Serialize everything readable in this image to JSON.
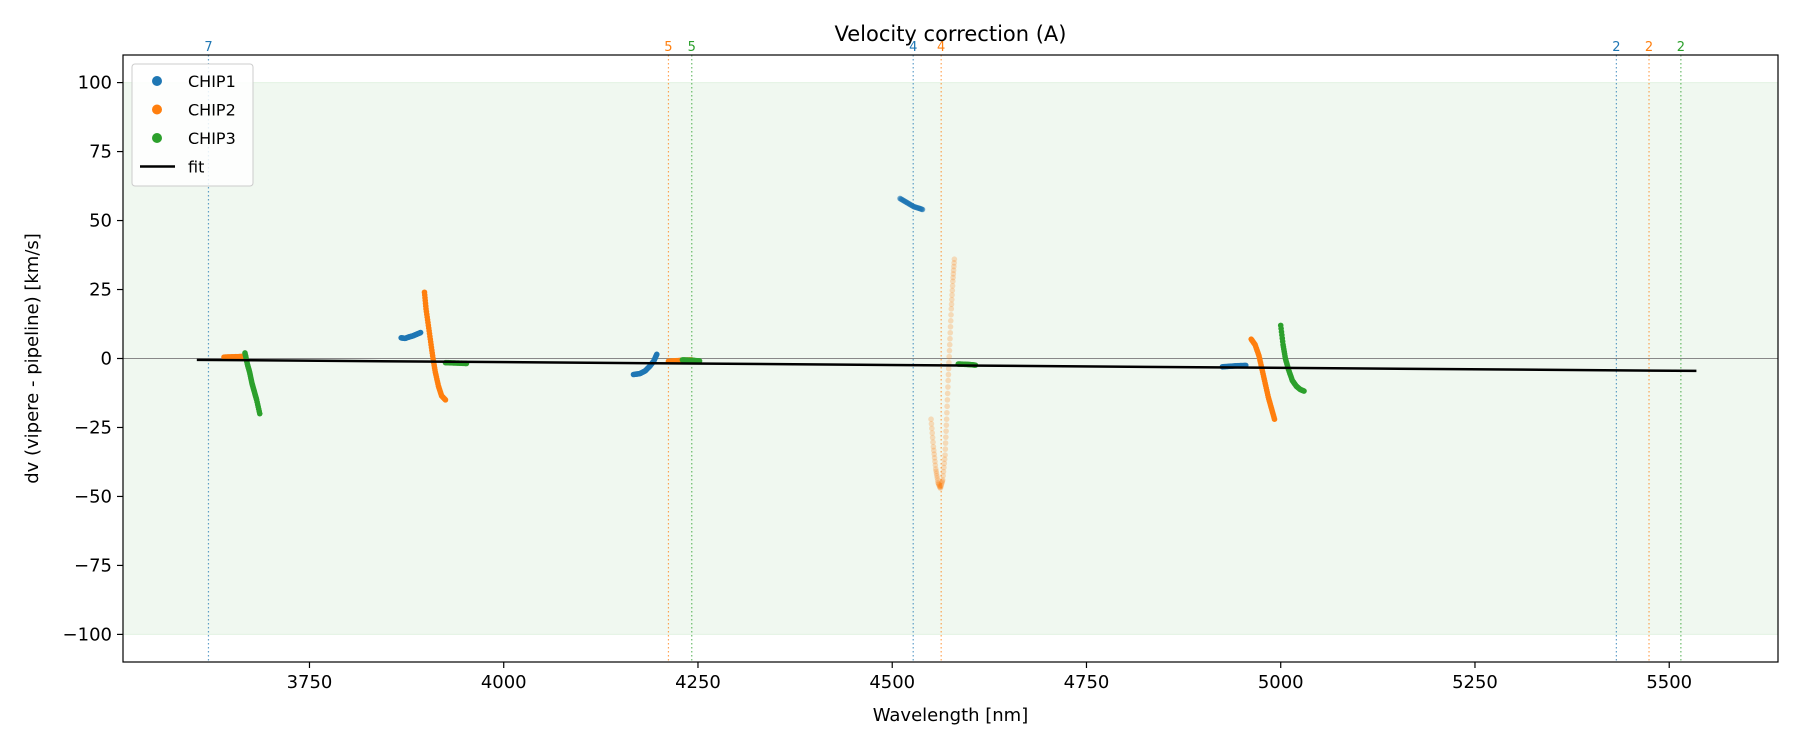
{
  "chart_data": {
    "type": "scatter",
    "title": "Velocity correction (A)",
    "xlabel": "Wavelength [nm]",
    "ylabel": "dv (vipere - pipeline) [km/s]",
    "xlim": [
      3510,
      5640
    ],
    "ylim": [
      -110,
      110
    ],
    "xticks": [
      3750,
      4000,
      4250,
      4500,
      4750,
      5000,
      5250,
      5500
    ],
    "yticks": [
      -100,
      -75,
      -50,
      -25,
      0,
      25,
      50,
      75,
      100
    ],
    "band": {
      "ymin": -100,
      "ymax": 100,
      "color": "#2ca02c"
    },
    "zero_line": 0,
    "colors": {
      "CHIP1": "#1f77b4",
      "CHIP2": "#ff7f0e",
      "CHIP3": "#2ca02c",
      "fit": "#000000"
    },
    "legend": [
      {
        "label": "CHIP1",
        "kind": "marker",
        "color": "#1f77b4"
      },
      {
        "label": "CHIP2",
        "kind": "marker",
        "color": "#ff7f0e"
      },
      {
        "label": "CHIP3",
        "kind": "marker",
        "color": "#2ca02c"
      },
      {
        "label": "fit",
        "kind": "line",
        "color": "#000000"
      }
    ],
    "legend_loc": "upper-left",
    "fit": {
      "x": [
        3605,
        5535
      ],
      "y": [
        -0.5,
        -4.5
      ]
    },
    "order_markers": [
      {
        "x": 3620,
        "label": "7",
        "chip": "CHIP1"
      },
      {
        "x": 4212,
        "label": "5",
        "chip": "CHIP2"
      },
      {
        "x": 4242,
        "label": "5",
        "chip": "CHIP3"
      },
      {
        "x": 4527,
        "label": "4",
        "chip": "CHIP1"
      },
      {
        "x": 4563,
        "label": "4",
        "chip": "CHIP2"
      },
      {
        "x": 5432,
        "label": "2",
        "chip": "CHIP1"
      },
      {
        "x": 5474,
        "label": "2",
        "chip": "CHIP2"
      },
      {
        "x": 5515,
        "label": "2",
        "chip": "CHIP3"
      }
    ],
    "series": [
      {
        "name": "CHIP1",
        "alpha": 1.0,
        "points": [
          [
            3868,
            7.5
          ],
          [
            3873,
            7.3
          ],
          [
            3878,
            7.8
          ],
          [
            3883,
            8.2
          ],
          [
            3888,
            8.8
          ],
          [
            3893,
            9.4
          ]
        ]
      },
      {
        "name": "CHIP1",
        "alpha": 1.0,
        "points": [
          [
            4167,
            -5.8
          ],
          [
            4175,
            -5.5
          ],
          [
            4182,
            -4.5
          ],
          [
            4188,
            -2.8
          ],
          [
            4193,
            -1
          ],
          [
            4197,
            1.5
          ]
        ]
      },
      {
        "name": "CHIP1",
        "alpha": 0.55,
        "points": [
          [
            4510,
            58
          ],
          [
            4516,
            57
          ],
          [
            4522,
            56
          ],
          [
            4528,
            55
          ],
          [
            4534,
            54.5
          ],
          [
            4539,
            54
          ]
        ]
      },
      {
        "name": "CHIP1",
        "alpha": 1.0,
        "points": [
          [
            4925,
            -3
          ],
          [
            4935,
            -2.8
          ],
          [
            4945,
            -2.6
          ],
          [
            4955,
            -2.5
          ]
        ]
      },
      {
        "name": "CHIP2",
        "alpha": 1.0,
        "points": [
          [
            3640,
            0.5
          ],
          [
            3650,
            0.6
          ],
          [
            3660,
            0.7
          ],
          [
            3668,
            0.8
          ]
        ]
      },
      {
        "name": "CHIP2",
        "alpha": 1.0,
        "points": [
          [
            3898,
            24
          ],
          [
            3900,
            18
          ],
          [
            3903,
            12
          ],
          [
            3906,
            6
          ],
          [
            3909,
            0
          ],
          [
            3912,
            -5
          ],
          [
            3916,
            -10
          ],
          [
            3920,
            -13.5
          ],
          [
            3925,
            -15
          ]
        ]
      },
      {
        "name": "CHIP2",
        "alpha": 1.0,
        "points": [
          [
            4212,
            -1
          ],
          [
            4222,
            -0.8
          ],
          [
            4232,
            -0.6
          ],
          [
            4242,
            -0.5
          ]
        ]
      },
      {
        "name": "CHIP2",
        "alpha": 0.25,
        "points": [
          [
            4550,
            -22
          ],
          [
            4553,
            -32
          ],
          [
            4556,
            -40
          ],
          [
            4559,
            -45
          ],
          [
            4562,
            -47
          ],
          [
            4565,
            -44
          ],
          [
            4568,
            -35
          ],
          [
            4570,
            -22
          ],
          [
            4572,
            -8
          ],
          [
            4574,
            5
          ],
          [
            4576,
            18
          ],
          [
            4578,
            28
          ],
          [
            4580,
            36
          ]
        ]
      },
      {
        "name": "CHIP2",
        "alpha": 1.0,
        "points": [
          [
            4962,
            7
          ],
          [
            4967,
            5
          ],
          [
            4972,
            1
          ],
          [
            4976,
            -4
          ],
          [
            4980,
            -9
          ],
          [
            4984,
            -14
          ],
          [
            4988,
            -18
          ],
          [
            4992,
            -22
          ]
        ]
      },
      {
        "name": "CHIP3",
        "alpha": 1.0,
        "points": [
          [
            3667,
            2
          ],
          [
            3670,
            -2
          ],
          [
            3673,
            -5
          ],
          [
            3676,
            -9
          ],
          [
            3679,
            -12
          ],
          [
            3682,
            -15
          ],
          [
            3686,
            -20
          ]
        ]
      },
      {
        "name": "CHIP3",
        "alpha": 1.0,
        "points": [
          [
            3925,
            -1.5
          ],
          [
            3935,
            -1.6
          ],
          [
            3945,
            -1.7
          ],
          [
            3952,
            -1.8
          ]
        ]
      },
      {
        "name": "CHIP3",
        "alpha": 1.0,
        "points": [
          [
            4230,
            -0.5
          ],
          [
            4238,
            -0.6
          ],
          [
            4245,
            -0.7
          ],
          [
            4252,
            -0.9
          ]
        ]
      },
      {
        "name": "CHIP3",
        "alpha": 1.0,
        "points": [
          [
            4585,
            -2
          ],
          [
            4593,
            -2.1
          ],
          [
            4600,
            -2.2
          ],
          [
            4607,
            -2.4
          ]
        ]
      },
      {
        "name": "CHIP3",
        "alpha": 1.0,
        "points": [
          [
            5000,
            12
          ],
          [
            5003,
            5
          ],
          [
            5006,
            0
          ],
          [
            5010,
            -4
          ],
          [
            5015,
            -8
          ],
          [
            5020,
            -10
          ],
          [
            5025,
            -11.2
          ],
          [
            5030,
            -11.8
          ]
        ]
      }
    ]
  }
}
